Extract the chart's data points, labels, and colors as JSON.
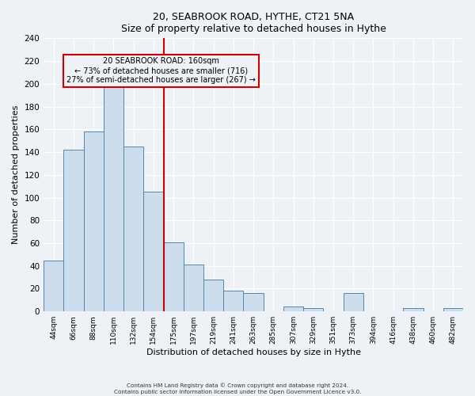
{
  "title": "20, SEABROOK ROAD, HYTHE, CT21 5NA",
  "subtitle": "Size of property relative to detached houses in Hythe",
  "xlabel": "Distribution of detached houses by size in Hythe",
  "ylabel": "Number of detached properties",
  "bin_labels": [
    "44sqm",
    "66sqm",
    "88sqm",
    "110sqm",
    "132sqm",
    "154sqm",
    "175sqm",
    "197sqm",
    "219sqm",
    "241sqm",
    "263sqm",
    "285sqm",
    "307sqm",
    "329sqm",
    "351sqm",
    "373sqm",
    "394sqm",
    "416sqm",
    "438sqm",
    "460sqm",
    "482sqm"
  ],
  "bar_heights": [
    45,
    142,
    158,
    199,
    145,
    105,
    61,
    41,
    28,
    18,
    16,
    0,
    4,
    3,
    0,
    16,
    0,
    0,
    3,
    0,
    3
  ],
  "bar_color": "#ccdded",
  "bar_edge_color": "#5588aa",
  "vline_x": 5.5,
  "vline_color": "#cc0000",
  "annotation_title": "20 SEABROOK ROAD: 160sqm",
  "annotation_line1": "← 73% of detached houses are smaller (716)",
  "annotation_line2": "27% of semi-detached houses are larger (267) →",
  "annotation_box_color": "#cc0000",
  "ylim": [
    0,
    240
  ],
  "yticks": [
    0,
    20,
    40,
    60,
    80,
    100,
    120,
    140,
    160,
    180,
    200,
    220,
    240
  ],
  "footer_line1": "Contains HM Land Registry data © Crown copyright and database right 2024.",
  "footer_line2": "Contains public sector information licensed under the Open Government Licence v3.0.",
  "bg_color": "#eef2f7",
  "grid_color": "#ffffff"
}
